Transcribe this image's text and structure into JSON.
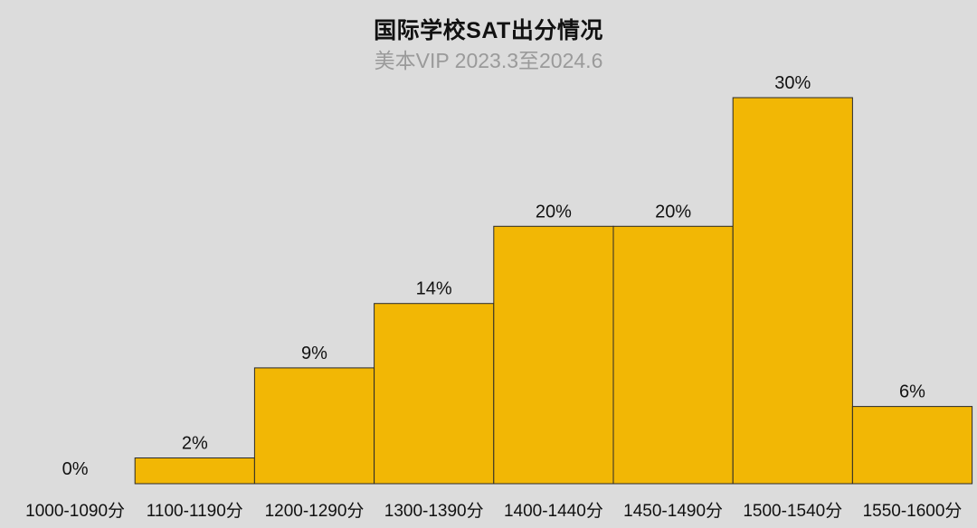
{
  "chart_data": {
    "type": "bar",
    "title": "国际学校SAT出分情况",
    "subtitle": "美本VIP 2023.3至2024.6",
    "categories": [
      "1000-1090分",
      "1100-1190分",
      "1200-1290分",
      "1300-1390分",
      "1400-1440分",
      "1450-1490分",
      "1500-1540分",
      "1550-1600分"
    ],
    "values": [
      0,
      2,
      9,
      14,
      20,
      20,
      30,
      6
    ],
    "value_labels": [
      "0%",
      "2%",
      "9%",
      "14%",
      "20%",
      "20%",
      "30%",
      "6%"
    ],
    "ylim": [
      0,
      30
    ],
    "grid": false,
    "bar_color": "#f2b705",
    "background": "#dcdcdc"
  }
}
